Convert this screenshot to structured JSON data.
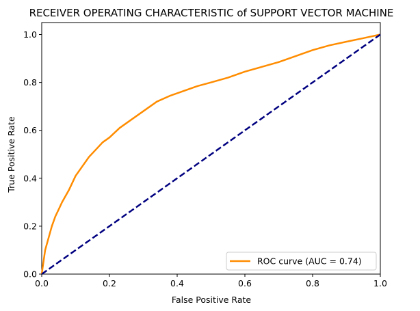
{
  "chart_data": {
    "type": "line",
    "title": "RECEIVER OPERATING CHARACTERISTIC of SUPPORT VECTOR MACHINE",
    "xlabel": "False Positive Rate",
    "ylabel": "True Positive Rate",
    "xlim": [
      0.0,
      1.0
    ],
    "ylim": [
      0.0,
      1.05
    ],
    "xticks": [
      "0.0",
      "0.2",
      "0.4",
      "0.6",
      "0.8",
      "1.0"
    ],
    "yticks": [
      "0.0",
      "0.2",
      "0.4",
      "0.6",
      "0.8",
      "1.0"
    ],
    "grid": false,
    "legend_position": "lower-right",
    "series": [
      {
        "name": "ROC curve (AUC = 0.74)",
        "color": "#ff8c00",
        "style": "solid",
        "x": [
          0.0,
          0.005,
          0.01,
          0.02,
          0.03,
          0.04,
          0.05,
          0.06,
          0.08,
          0.1,
          0.12,
          0.14,
          0.16,
          0.18,
          0.2,
          0.23,
          0.26,
          0.3,
          0.34,
          0.38,
          0.42,
          0.46,
          0.5,
          0.55,
          0.6,
          0.65,
          0.7,
          0.75,
          0.8,
          0.85,
          0.9,
          0.95,
          1.0
        ],
        "y": [
          0.0,
          0.05,
          0.1,
          0.15,
          0.2,
          0.24,
          0.27,
          0.3,
          0.35,
          0.41,
          0.45,
          0.49,
          0.52,
          0.55,
          0.57,
          0.61,
          0.64,
          0.68,
          0.72,
          0.745,
          0.765,
          0.785,
          0.8,
          0.82,
          0.845,
          0.865,
          0.885,
          0.91,
          0.935,
          0.955,
          0.97,
          0.985,
          1.0
        ]
      },
      {
        "name": "",
        "color": "#000080",
        "style": "dashed",
        "x": [
          0.0,
          1.0
        ],
        "y": [
          0.0,
          1.0
        ]
      }
    ]
  }
}
